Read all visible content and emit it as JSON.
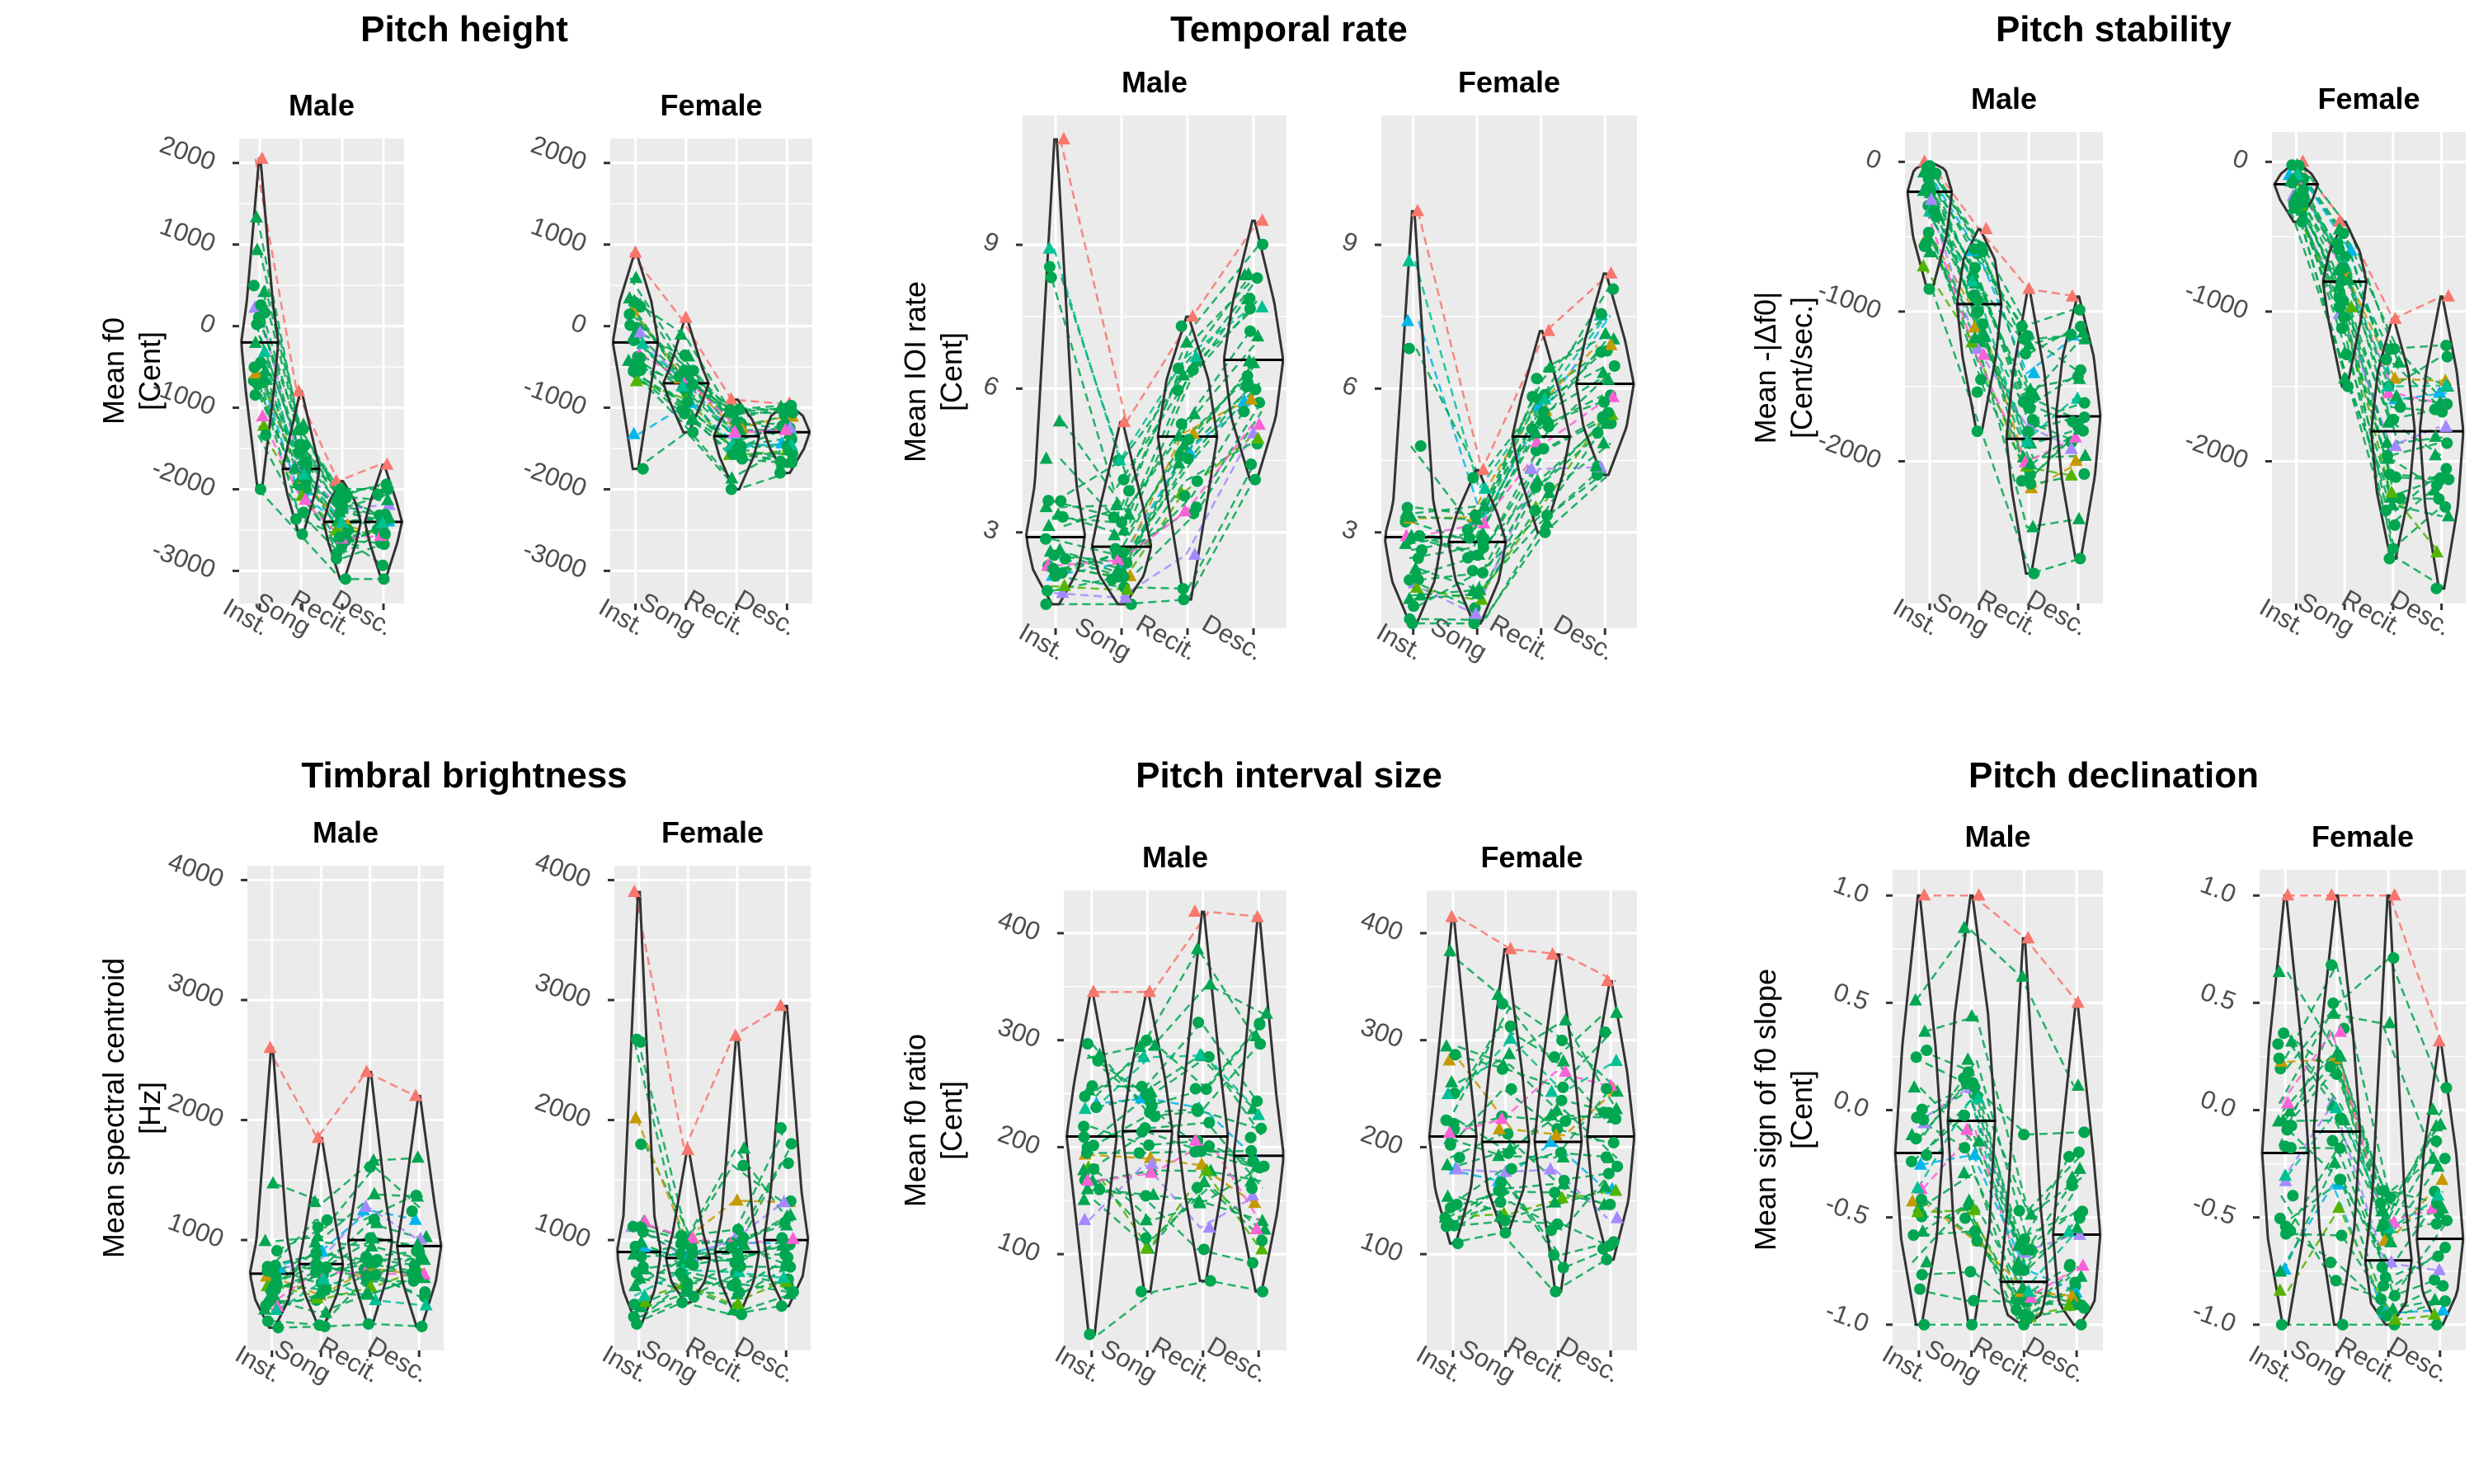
{
  "figure": {
    "categories": [
      "Inst.",
      "Song",
      "Recit.",
      "Desc."
    ],
    "colors": {
      "panel_bg": "#ebebeb",
      "grid": "#ffffff",
      "violin": "#333333",
      "tick_text": "#4d4d4d",
      "points": [
        "#f8766d",
        "#c49a00",
        "#53b400",
        "#00c094",
        "#00b6eb",
        "#a58aff",
        "#fb61d7",
        "#00a650"
      ]
    }
  },
  "chart_data": [
    {
      "type": "violin",
      "title": "Pitch height",
      "ylabel": [
        "Mean f0",
        "[Cent]"
      ],
      "ylim": [
        -3400,
        2300
      ],
      "yticks": [
        -3000,
        -2000,
        -1000,
        0,
        1000,
        2000
      ],
      "ytick_labels": [
        "-3000",
        "-2000",
        "-1000",
        "0",
        "1000",
        "2000"
      ],
      "facets": [
        {
          "name": "Male",
          "min": [
            -2000,
            -2550,
            -3100,
            -3100
          ],
          "q1": [
            -800,
            -2050,
            -2650,
            -2650
          ],
          "median": [
            -200,
            -1750,
            -2400,
            -2400
          ],
          "q3": [
            300,
            -1450,
            -2150,
            -2150
          ],
          "max": [
            2050,
            -800,
            -1900,
            -1700
          ]
        },
        {
          "name": "Female",
          "min": [
            -1750,
            -1300,
            -2000,
            -1800
          ],
          "q1": [
            -600,
            -900,
            -1600,
            -1500
          ],
          "median": [
            -200,
            -700,
            -1350,
            -1300
          ],
          "q3": [
            300,
            -500,
            -1150,
            -1100
          ],
          "max": [
            900,
            100,
            -900,
            -950
          ]
        }
      ]
    },
    {
      "type": "violin",
      "title": "Temporal rate",
      "ylabel": [
        "Mean IOI rate",
        "[Cent]"
      ],
      "ylim": [
        1,
        11.7
      ],
      "yticks": [
        3,
        6,
        9
      ],
      "ytick_labels": [
        "3",
        "6",
        "9"
      ],
      "facets": [
        {
          "name": "Male",
          "min": [
            1.5,
            1.5,
            1.6,
            4.1
          ],
          "q1": [
            2.2,
            2.1,
            4.0,
            5.4
          ],
          "median": [
            2.9,
            2.7,
            5.0,
            6.6
          ],
          "q3": [
            4.0,
            3.6,
            6.2,
            7.8
          ],
          "max": [
            11.2,
            5.3,
            7.5,
            9.5
          ]
        },
        {
          "name": "Female",
          "min": [
            1.1,
            1.1,
            3.0,
            4.2
          ],
          "q1": [
            2.0,
            2.0,
            4.2,
            5.2
          ],
          "median": [
            2.9,
            2.8,
            5.0,
            6.1
          ],
          "q3": [
            3.6,
            3.4,
            5.8,
            7.0
          ],
          "max": [
            9.7,
            4.3,
            7.2,
            8.4
          ]
        }
      ]
    },
    {
      "type": "violin",
      "title": "Pitch stability",
      "ylabel": [
        "Mean -|Δf0|",
        "[Cent/sec.]"
      ],
      "ylim": [
        -2950,
        200
      ],
      "yticks": [
        -2000,
        -1000,
        0
      ],
      "ytick_labels": [
        "-2000",
        "-1000",
        "0"
      ],
      "facets": [
        {
          "name": "Male",
          "min": [
            -850,
            -1800,
            -2750,
            -2650
          ],
          "q1": [
            -500,
            -1300,
            -2200,
            -2100
          ],
          "median": [
            -200,
            -950,
            -1850,
            -1700
          ],
          "q3": [
            -50,
            -650,
            -1400,
            -1300
          ],
          "max": [
            0,
            -450,
            -850,
            -900
          ]
        },
        {
          "name": "Female",
          "min": [
            -400,
            -1500,
            -2650,
            -2850
          ],
          "q1": [
            -250,
            -1050,
            -2200,
            -2300
          ],
          "median": [
            -150,
            -800,
            -1800,
            -1800
          ],
          "q3": [
            -80,
            -600,
            -1400,
            -1400
          ],
          "max": [
            0,
            -400,
            -1050,
            -900
          ]
        }
      ]
    },
    {
      "type": "violin",
      "title": "Timbral brightness",
      "ylabel": [
        "Mean spectral centroid",
        "[Hz]"
      ],
      "ylim": [
        80,
        4120
      ],
      "yticks": [
        1000,
        2000,
        3000,
        4000
      ],
      "ytick_labels": [
        "1000",
        "2000",
        "3000",
        "4000"
      ],
      "facets": [
        {
          "name": "Male",
          "min": [
            270,
            280,
            300,
            280
          ],
          "q1": [
            500,
            560,
            680,
            650
          ],
          "median": [
            720,
            800,
            1000,
            950
          ],
          "q3": [
            1000,
            1100,
            1350,
            1300
          ],
          "max": [
            2600,
            1850,
            2400,
            2200
          ]
        },
        {
          "name": "Female",
          "min": [
            300,
            480,
            380,
            450
          ],
          "q1": [
            600,
            650,
            650,
            700
          ],
          "median": [
            900,
            850,
            900,
            1000
          ],
          "q3": [
            1200,
            1050,
            1200,
            1400
          ],
          "max": [
            3900,
            1750,
            2700,
            2950
          ]
        }
      ]
    },
    {
      "type": "violin",
      "title": "Pitch interval size",
      "ylabel": [
        "Mean f0 ratio",
        "[Cent]"
      ],
      "ylim": [
        10,
        440
      ],
      "yticks": [
        100,
        200,
        300,
        400
      ],
      "ytick_labels": [
        "100",
        "200",
        "300",
        "400"
      ],
      "facets": [
        {
          "name": "Male",
          "min": [
            25,
            65,
            75,
            65
          ],
          "q1": [
            160,
            165,
            160,
            140
          ],
          "median": [
            210,
            215,
            210,
            192
          ],
          "q3": [
            260,
            265,
            270,
            250
          ],
          "max": [
            345,
            345,
            420,
            415
          ]
        },
        {
          "name": "Female",
          "min": [
            110,
            120,
            65,
            95
          ],
          "q1": [
            160,
            160,
            165,
            150
          ],
          "median": [
            210,
            205,
            205,
            210
          ],
          "q3": [
            270,
            270,
            270,
            270
          ],
          "max": [
            415,
            385,
            380,
            355
          ]
        }
      ]
    },
    {
      "type": "violin",
      "title": "Pitch declination",
      "ylabel": [
        "Mean sign of f0 slope",
        "[Cent]"
      ],
      "ylim": [
        -1.12,
        1.12
      ],
      "yticks": [
        -1.0,
        -0.5,
        0.0,
        0.5,
        1.0
      ],
      "ytick_labels": [
        "-1.0",
        "-0.5",
        "0.0",
        "0.5",
        "1.0"
      ],
      "facets": [
        {
          "name": "Male",
          "min": [
            -1.0,
            -1.0,
            -1.0,
            -1.0
          ],
          "q1": [
            -0.6,
            -0.55,
            -0.95,
            -0.9
          ],
          "median": [
            -0.2,
            -0.05,
            -0.8,
            -0.58
          ],
          "q3": [
            0.3,
            0.45,
            -0.45,
            -0.2
          ],
          "max": [
            1.0,
            1.0,
            0.8,
            0.5
          ]
        },
        {
          "name": "Female",
          "min": [
            -1.0,
            -1.0,
            -1.0,
            -1.0
          ],
          "q1": [
            -0.6,
            -0.55,
            -0.9,
            -0.85
          ],
          "median": [
            -0.2,
            -0.1,
            -0.7,
            -0.6
          ],
          "q3": [
            0.3,
            0.35,
            -0.4,
            -0.2
          ],
          "max": [
            1.0,
            1.0,
            1.0,
            0.32
          ]
        }
      ]
    }
  ]
}
